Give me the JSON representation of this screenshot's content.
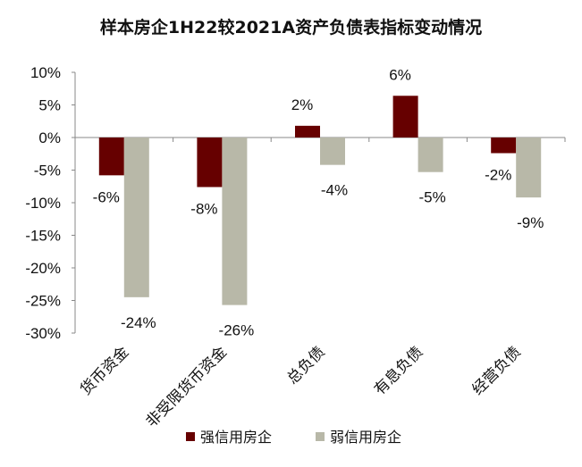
{
  "chart_data": {
    "type": "bar",
    "title": "样本房企1H22较2021A资产负债表指标变动情况",
    "categories": [
      "货币资金",
      "非受限货币资金",
      "总负债",
      "有息负债",
      "经营负债"
    ],
    "series": [
      {
        "name": "强信用房企",
        "color": "#660000",
        "values": [
          -5.8,
          -7.6,
          1.8,
          6.4,
          -2.4
        ],
        "labels": [
          "-6%",
          "-8%",
          "2%",
          "6%",
          "-2%"
        ]
      },
      {
        "name": "弱信用房企",
        "color": "#B8B8A8",
        "values": [
          -24.5,
          -25.7,
          -4.2,
          -5.3,
          -9.2
        ],
        "labels": [
          "-24%",
          "-26%",
          "-4%",
          "-5%",
          "-9%"
        ]
      }
    ],
    "ylim": [
      -30,
      10
    ],
    "yticks": [
      10,
      5,
      0,
      -5,
      -10,
      -15,
      -20,
      -25,
      -30
    ],
    "ytick_labels": [
      "10%",
      "5%",
      "0%",
      "-5%",
      "-10%",
      "-15%",
      "-20%",
      "-25%",
      "-30%"
    ],
    "grid": false,
    "legend_position": "bottom"
  }
}
